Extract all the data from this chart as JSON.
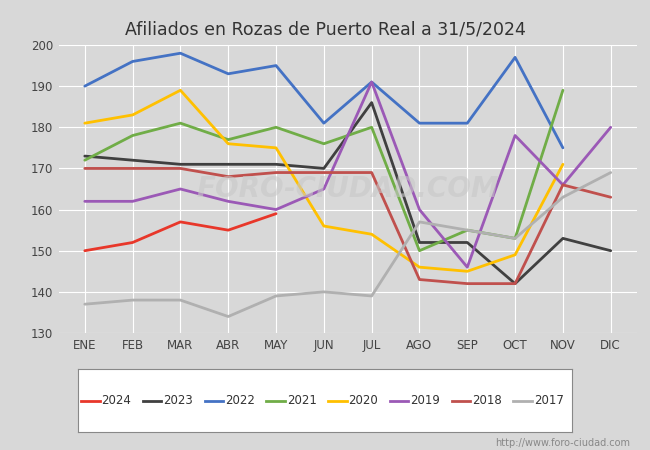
{
  "title": "Afiliados en Rozas de Puerto Real a 31/5/2024",
  "ylim": [
    130,
    200
  ],
  "yticks": [
    130,
    140,
    150,
    160,
    170,
    180,
    190,
    200
  ],
  "months": [
    "ENE",
    "FEB",
    "MAR",
    "ABR",
    "MAY",
    "JUN",
    "JUL",
    "AGO",
    "SEP",
    "OCT",
    "NOV",
    "DIC"
  ],
  "watermark": "FORO-CIUDAD.COM",
  "url": "http://www.foro-ciudad.com",
  "series": {
    "2024": {
      "color": "#e8372a",
      "data": [
        150,
        152,
        157,
        155,
        159,
        null,
        null,
        null,
        null,
        null,
        null,
        null
      ]
    },
    "2023": {
      "color": "#404040",
      "data": [
        173,
        172,
        171,
        171,
        171,
        170,
        186,
        152,
        152,
        142,
        153,
        150
      ]
    },
    "2022": {
      "color": "#4472c4",
      "data": [
        190,
        196,
        198,
        193,
        195,
        181,
        191,
        181,
        181,
        197,
        175,
        null
      ]
    },
    "2021": {
      "color": "#70ad47",
      "data": [
        172,
        178,
        181,
        177,
        180,
        176,
        180,
        150,
        155,
        153,
        189,
        null
      ]
    },
    "2020": {
      "color": "#ffc000",
      "data": [
        181,
        183,
        189,
        176,
        175,
        156,
        154,
        146,
        145,
        149,
        171,
        null
      ]
    },
    "2019": {
      "color": "#9b59b6",
      "data": [
        162,
        162,
        165,
        162,
        160,
        165,
        191,
        160,
        146,
        178,
        166,
        180
      ]
    },
    "2018": {
      "color": "#c0504d",
      "data": [
        170,
        170,
        170,
        168,
        169,
        169,
        169,
        143,
        142,
        142,
        166,
        163
      ]
    },
    "2017": {
      "color": "#b0b0b0",
      "data": [
        137,
        138,
        138,
        134,
        139,
        140,
        139,
        157,
        155,
        153,
        163,
        169
      ]
    }
  },
  "legend_order": [
    "2024",
    "2023",
    "2022",
    "2021",
    "2020",
    "2019",
    "2018",
    "2017"
  ],
  "background_color": "#d8d8d8",
  "plot_bg": "#d8d8d8",
  "grid_color": "#ffffff",
  "title_color": "#333333",
  "tick_color": "#444444"
}
